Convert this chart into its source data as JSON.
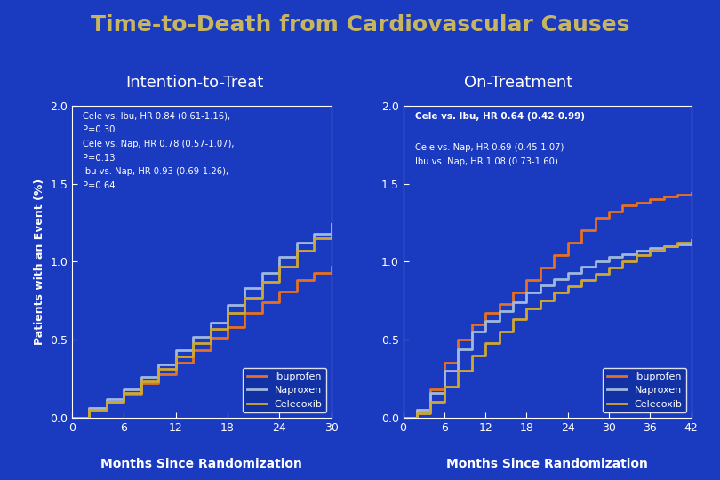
{
  "title": "Time-to-Death from Cardiovascular Causes",
  "title_color": "#C8B560",
  "background_color": "#1A3ABF",
  "plot_bg_color": "#1A3ABF",
  "subplot1_title": "Intention-to-Treat",
  "subplot2_title": "On-Treatment",
  "subplot_title_color": "white",
  "ylabel": "Patients with an Event (%)",
  "xlabel": "Months Since Randomization",
  "axis_label_color": "white",
  "tick_color": "white",
  "ylim": [
    0.0,
    2.0
  ],
  "yticks": [
    0.0,
    0.5,
    1.0,
    1.5,
    2.0
  ],
  "subplot1_xlim": [
    0,
    30
  ],
  "subplot1_xticks": [
    0,
    6,
    12,
    18,
    24,
    30
  ],
  "subplot2_xlim": [
    0,
    42
  ],
  "subplot2_xticks": [
    0,
    6,
    12,
    18,
    24,
    30,
    36,
    42
  ],
  "ibu_color": "#E87020",
  "nap_color": "#A0B8E0",
  "cel_color": "#D0A830",
  "subplot1_ann": "Cele vs. Ibu, HR 0.84 (0.61-1.16),\nP=0.30\nCele vs. Nap, HR 0.78 (0.57-1.07),\nP=0.13\nIbu vs. Nap, HR 0.93 (0.69-1.26),\nP=0.64",
  "subplot2_ann_bold": "Cele vs. Ibu, HR 0.64 (0.42-0.99)",
  "subplot2_ann_rest": "Cele vs. Nap, HR 0.69 (0.45-1.07)\nIbu vs. Nap, HR 1.08 (0.73-1.60)",
  "s1_ibu_x": [
    0,
    2,
    4,
    6,
    8,
    10,
    12,
    14,
    16,
    18,
    20,
    22,
    24,
    26,
    28,
    30
  ],
  "s1_ibu_y": [
    0,
    0.06,
    0.1,
    0.15,
    0.22,
    0.28,
    0.35,
    0.43,
    0.51,
    0.58,
    0.67,
    0.74,
    0.81,
    0.88,
    0.93,
    0.97
  ],
  "s1_nap_x": [
    0,
    2,
    4,
    6,
    8,
    10,
    12,
    14,
    16,
    18,
    20,
    22,
    24,
    26,
    28,
    30
  ],
  "s1_nap_y": [
    0,
    0.06,
    0.12,
    0.18,
    0.26,
    0.34,
    0.43,
    0.52,
    0.61,
    0.72,
    0.83,
    0.93,
    1.03,
    1.12,
    1.18,
    1.24
  ],
  "s1_cel_x": [
    0,
    2,
    4,
    6,
    8,
    10,
    12,
    14,
    16,
    18,
    20,
    22,
    24,
    26,
    28,
    30
  ],
  "s1_cel_y": [
    0,
    0.05,
    0.1,
    0.16,
    0.23,
    0.31,
    0.39,
    0.48,
    0.57,
    0.67,
    0.77,
    0.87,
    0.97,
    1.07,
    1.15,
    1.22
  ],
  "s2_ibu_x": [
    0,
    2,
    4,
    6,
    8,
    10,
    12,
    14,
    16,
    18,
    20,
    22,
    24,
    26,
    28,
    30,
    32,
    34,
    36,
    38,
    40,
    42
  ],
  "s2_ibu_y": [
    0,
    0.05,
    0.18,
    0.35,
    0.5,
    0.6,
    0.67,
    0.73,
    0.8,
    0.88,
    0.96,
    1.04,
    1.12,
    1.2,
    1.28,
    1.32,
    1.36,
    1.38,
    1.4,
    1.42,
    1.43,
    1.44
  ],
  "s2_nap_x": [
    0,
    2,
    4,
    6,
    8,
    10,
    12,
    14,
    16,
    18,
    20,
    22,
    24,
    26,
    28,
    30,
    32,
    34,
    36,
    38,
    40,
    42
  ],
  "s2_nap_y": [
    0,
    0.05,
    0.16,
    0.3,
    0.44,
    0.55,
    0.62,
    0.68,
    0.74,
    0.8,
    0.85,
    0.89,
    0.93,
    0.97,
    1.0,
    1.03,
    1.05,
    1.07,
    1.09,
    1.1,
    1.11,
    1.12
  ],
  "s2_cel_x": [
    0,
    2,
    4,
    6,
    8,
    10,
    12,
    14,
    16,
    18,
    20,
    22,
    24,
    26,
    28,
    30,
    32,
    34,
    36,
    38,
    40,
    42
  ],
  "s2_cel_y": [
    0,
    0.03,
    0.1,
    0.2,
    0.3,
    0.4,
    0.48,
    0.55,
    0.63,
    0.7,
    0.75,
    0.8,
    0.84,
    0.88,
    0.92,
    0.96,
    1.0,
    1.04,
    1.07,
    1.1,
    1.12,
    1.14
  ]
}
